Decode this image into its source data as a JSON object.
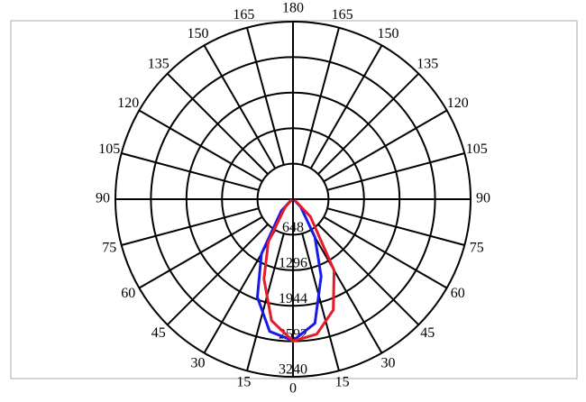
{
  "chart_data": {
    "type": "polar",
    "angle_ticks": [
      0,
      15,
      30,
      45,
      60,
      75,
      90,
      105,
      120,
      135,
      150,
      165,
      180
    ],
    "r_ticks": [
      648,
      1296,
      1944,
      2592,
      3240
    ],
    "rlim": [
      0,
      3240
    ],
    "x": [
      -60,
      -45,
      -30,
      -20,
      -10,
      0,
      10,
      20,
      30,
      45,
      60
    ],
    "series": [
      {
        "color": "#1a1ae6",
        "values": [
          40,
          300,
          1150,
          1900,
          2450,
          2580,
          2300,
          1500,
          800,
          200,
          20
        ]
      },
      {
        "color": "#e61a2a",
        "values": [
          20,
          200,
          900,
          1550,
          2250,
          2590,
          2500,
          2150,
          1500,
          450,
          40
        ]
      }
    ]
  }
}
